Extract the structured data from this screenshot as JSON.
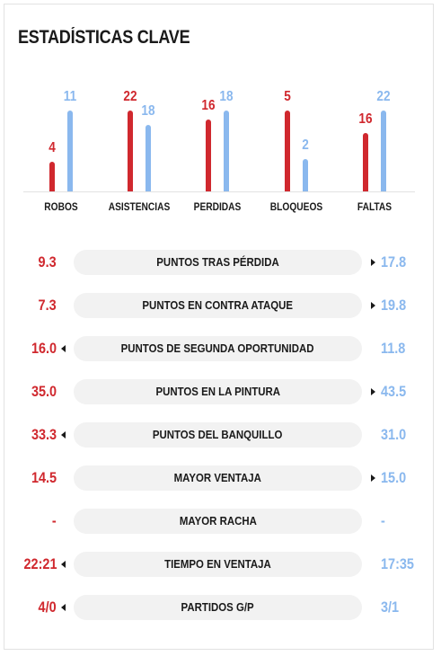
{
  "title": "ESTADÍSTICAS CLAVE",
  "colors": {
    "team_a": "#d0282e",
    "team_b": "#8ab8ee"
  },
  "chart_data": {
    "type": "bar",
    "categories": [
      "ROBOS",
      "ASISTENCIAS",
      "PERDIDAS",
      "BLOQUEOS",
      "FALTAS"
    ],
    "series": [
      {
        "values": [
          4,
          22,
          16,
          5,
          16
        ]
      },
      {
        "values": [
          11,
          18,
          18,
          2,
          22
        ]
      }
    ],
    "per_category_scale": true
  },
  "rows": [
    {
      "label": "PUNTOS TRAS PÉRDIDA",
      "left": "9.3",
      "right": "17.8",
      "leader": "right"
    },
    {
      "label": "PUNTOS EN CONTRA ATAQUE",
      "left": "7.3",
      "right": "19.8",
      "leader": "right"
    },
    {
      "label": "PUNTOS DE SEGUNDA OPORTUNIDAD",
      "left": "16.0",
      "right": "11.8",
      "leader": "left"
    },
    {
      "label": "PUNTOS EN LA PINTURA",
      "left": "35.0",
      "right": "43.5",
      "leader": "right"
    },
    {
      "label": "PUNTOS DEL BANQUILLO",
      "left": "33.3",
      "right": "31.0",
      "leader": "left"
    },
    {
      "label": "MAYOR VENTAJA",
      "left": "14.5",
      "right": "15.0",
      "leader": "right"
    },
    {
      "label": "MAYOR RACHA",
      "left": "-",
      "right": "-",
      "leader": "none"
    },
    {
      "label": "TIEMPO EN VENTAJA",
      "left": "22:21",
      "right": "17:35",
      "leader": "left"
    },
    {
      "label": "PARTIDOS G/P",
      "left": "4/0",
      "right": "3/1",
      "leader": "left"
    }
  ]
}
